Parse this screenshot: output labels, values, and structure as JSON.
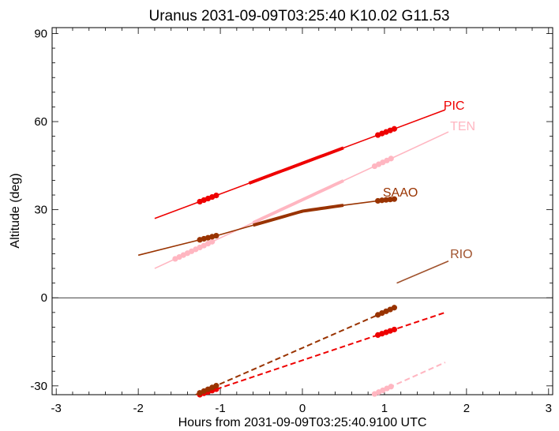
{
  "chart_data": {
    "type": "line",
    "title": "Uranus 2031-09-09T03:25:40  K10.02  G11.53",
    "xlabel": "Hours from 2031-09-09T03:25:40.9100 UTC",
    "ylabel": "Altitude (deg)",
    "xlim": [
      -3.05,
      3.05
    ],
    "ylim": [
      -33,
      92
    ],
    "xticks": [
      -3,
      -2,
      -1,
      0,
      1,
      2,
      3
    ],
    "yticks": [
      -30,
      0,
      30,
      60,
      90
    ],
    "grid": false,
    "reference_line_y": 0,
    "series": [
      {
        "name": "PIC",
        "color": "#ee0000",
        "label_at": [
          1.72,
          64
        ],
        "x": [
          -1.8,
          1.74
        ],
        "y": [
          27,
          64
        ],
        "thick_segments": [
          [
            -0.65,
            0.5
          ]
        ],
        "markers": [
          -1.25,
          -1.2,
          -1.15,
          -1.1,
          -1.05,
          0.92,
          0.97,
          1.02,
          1.07,
          1.12
        ],
        "below_horizon": {
          "x": [
            -1.25,
            1.74
          ],
          "y": [
            -33,
            -5
          ]
        }
      },
      {
        "name": "TEN",
        "color": "#ffb6c1",
        "label_at": [
          1.8,
          57
        ],
        "x": [
          -1.8,
          1.78
        ],
        "y": [
          10,
          56.5
        ],
        "thick_segments": [
          [
            -0.6,
            0.5
          ]
        ],
        "markers": [
          -1.55,
          -1.5,
          -1.45,
          -1.4,
          -1.35,
          -1.3,
          -1.25,
          -1.2,
          -1.15,
          -1.1,
          0.88,
          0.93,
          0.98,
          1.03,
          1.08
        ],
        "below_horizon": {
          "x": [
            0.86,
            1.74
          ],
          "y": [
            -33,
            -22
          ]
        }
      },
      {
        "name": "SAAO",
        "color": "#993300",
        "label_at": [
          0.98,
          34.5
        ],
        "x": [
          -2.0,
          -1.5,
          -1.0,
          -0.5,
          0.0,
          0.5,
          1.0,
          1.15
        ],
        "y": [
          14.5,
          18,
          21.5,
          25.5,
          29.5,
          31.5,
          33.3,
          33.7
        ],
        "thick_segments": [
          [
            -0.6,
            0.5
          ]
        ],
        "markers": [
          -1.25,
          -1.2,
          -1.15,
          -1.1,
          -1.05,
          0.92,
          0.97,
          1.02,
          1.07,
          1.12
        ],
        "below_horizon": {
          "x": [
            -1.3,
            1.15
          ],
          "y": [
            -33,
            -3
          ]
        }
      },
      {
        "name": "RIO",
        "color": "#a0522d",
        "label_at": [
          1.8,
          13.5
        ],
        "x": [
          1.15,
          1.78
        ],
        "y": [
          5,
          12.5
        ],
        "thick_segments": [],
        "markers": [],
        "below_horizon": null
      }
    ]
  }
}
